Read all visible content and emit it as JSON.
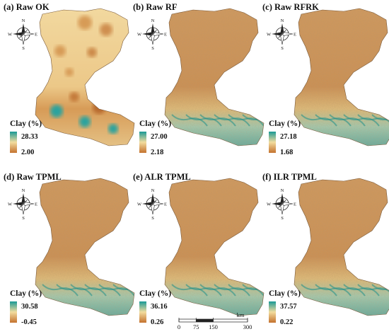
{
  "legend_title": "Clay (%)",
  "compass": {
    "n": "N",
    "s": "S",
    "e": "E",
    "w": "W"
  },
  "colors": {
    "high": "#1a9a96",
    "mid": "#f2dc9e",
    "low": "#c4722e"
  },
  "panels": [
    {
      "id": "a",
      "title": "(a) Raw OK",
      "max": "28.33",
      "min": "2.00",
      "style": "ok"
    },
    {
      "id": "b",
      "title": "(b) Raw RF",
      "max": "27.00",
      "min": "2.18",
      "style": "rf"
    },
    {
      "id": "c",
      "title": "(c) Raw RFRK",
      "max": "27.18",
      "min": "1.68",
      "style": "rf"
    },
    {
      "id": "d",
      "title": "(d) Raw TPML",
      "max": "30.58",
      "min": "-0.45",
      "style": "rf"
    },
    {
      "id": "e",
      "title": "(e) ALR TPML",
      "max": "36.16",
      "min": "0.26",
      "style": "rf"
    },
    {
      "id": "f",
      "title": "(f) ILR TPML",
      "max": "37.57",
      "min": "0.22",
      "style": "rf"
    }
  ],
  "scalebar": {
    "unit": "km",
    "ticks": [
      "0",
      "75",
      "150",
      "300"
    ]
  }
}
